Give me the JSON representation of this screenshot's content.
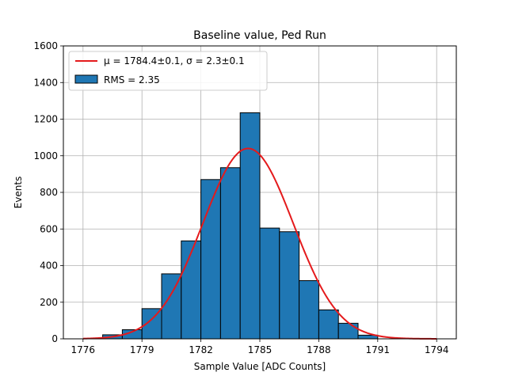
{
  "chart_data": {
    "type": "bar",
    "title": "Baseline value, Ped Run",
    "xlabel": "Sample Value [ADC Counts]",
    "ylabel": "Events",
    "xlim": [
      1775,
      1795
    ],
    "ylim": [
      0,
      1600
    ],
    "xticks": [
      1776,
      1779,
      1782,
      1785,
      1788,
      1791,
      1794
    ],
    "yticks": [
      0,
      200,
      400,
      600,
      800,
      1000,
      1200,
      1400,
      1600
    ],
    "grid": true,
    "legend_placement": "top-left",
    "bin_width": 1,
    "bins": [
      {
        "x": 1777.5,
        "value": 22
      },
      {
        "x": 1778.5,
        "value": 50
      },
      {
        "x": 1779.5,
        "value": 165
      },
      {
        "x": 1780.5,
        "value": 355
      },
      {
        "x": 1781.5,
        "value": 535
      },
      {
        "x": 1782.5,
        "value": 870
      },
      {
        "x": 1783.5,
        "value": 935
      },
      {
        "x": 1784.5,
        "value": 1235
      },
      {
        "x": 1785.5,
        "value": 605
      },
      {
        "x": 1786.5,
        "value": 585
      },
      {
        "x": 1787.5,
        "value": 318
      },
      {
        "x": 1788.5,
        "value": 158
      },
      {
        "x": 1789.5,
        "value": 85
      },
      {
        "x": 1790.5,
        "value": 20
      }
    ],
    "fit": {
      "type": "gaussian",
      "mean": 1784.4,
      "sigma": 2.3,
      "amplitude": 1040,
      "range": [
        1776,
        1794
      ],
      "label": "μ = 1784.4±0.1, σ = 2.3±0.1"
    },
    "series": [
      {
        "name": "μ = 1784.4±0.1, σ = 2.3±0.1",
        "color": "#e41a1c",
        "kind": "line"
      },
      {
        "name": "RMS = 2.35",
        "color": "#1f77b4",
        "kind": "bar"
      }
    ]
  }
}
